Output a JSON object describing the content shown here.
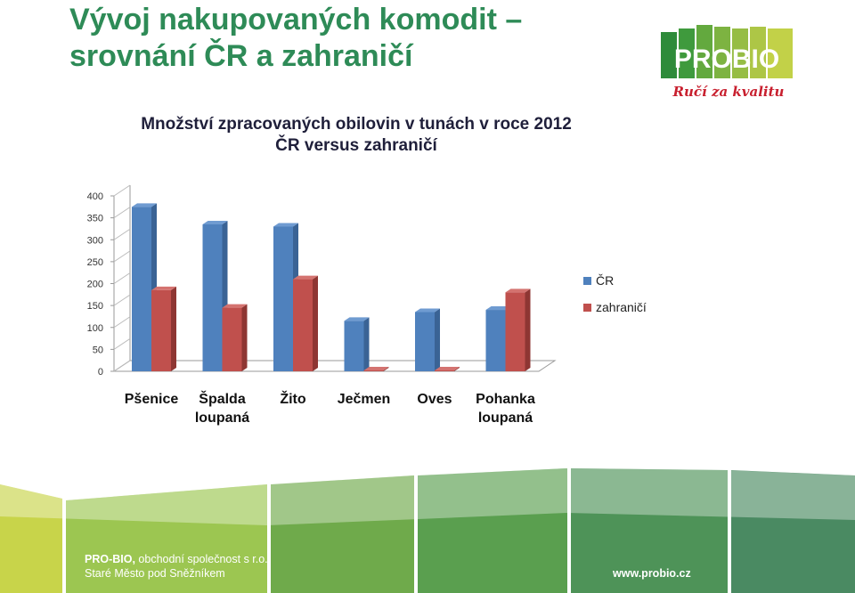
{
  "slide": {
    "title_line1": "Vývoj nakupovaných komodit –",
    "title_line2": "srovnání ČR a zahraničí"
  },
  "logo": {
    "text": "PROBIO",
    "tagline": "Ručí za kvalitu"
  },
  "footer": {
    "company_bold": "PRO-BIO,",
    "company_rest": " obchodní společnost s r.o.",
    "city": "Staré Město pod Sněžníkem",
    "website": "www.probio.cz"
  },
  "colors": {
    "title": "#2e8b57",
    "series_cr": "#4f81bd",
    "series_abroad": "#c0504d",
    "footer_greens": [
      "#c8d44a",
      "#8fbf4f",
      "#5a9f4f",
      "#4e9358",
      "#4a8a62"
    ]
  },
  "chart_data": {
    "type": "bar",
    "title_line1": "Množství zpracovaných obilovin v tunách v roce 2012",
    "title_line2": "ČR versus zahraničí",
    "categories": [
      [
        "Pšenice"
      ],
      [
        "Špalda",
        "loupaná"
      ],
      [
        "Žito"
      ],
      [
        "Ječmen"
      ],
      [
        "Oves"
      ],
      [
        "Pohanka",
        "loupaná"
      ]
    ],
    "series": [
      {
        "name": "ČR",
        "values": [
          375,
          335,
          330,
          115,
          135,
          140
        ]
      },
      {
        "name": "zahraničí",
        "values": [
          185,
          145,
          210,
          0,
          0,
          180
        ]
      }
    ],
    "ylim": [
      0,
      400
    ],
    "yticks": [
      0,
      50,
      100,
      150,
      200,
      250,
      300,
      350,
      400
    ],
    "grid": false,
    "legend_position": "right",
    "style": "3d-clustered-column"
  }
}
